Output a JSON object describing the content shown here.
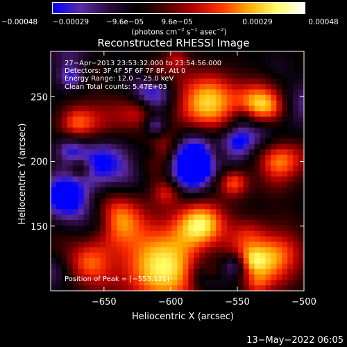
{
  "colorbar": {
    "ticks": [
      "−0.00048",
      "−0.00029",
      "−9.6e−05",
      "9.6e−05",
      "0.00029",
      "0.00048"
    ],
    "units_prefix": "(photons cm",
    "units_sup1": "−2",
    "units_mid1": " s",
    "units_sup2": "−1",
    "units_mid2": " asec",
    "units_sup3": "−2",
    "units_suffix": ")",
    "colors": [
      "#0000ff",
      "#5a2ca8",
      "#2a0a3a",
      "#000000",
      "#4a0000",
      "#b30000",
      "#ff3300",
      "#ffaa00",
      "#ffff66",
      "#ffffff"
    ]
  },
  "title": "Reconstructed RHESSI Image",
  "annotations": {
    "time_range": "27−Apr−2013 23:53:32.000 to 23:54:56.000",
    "detectors": "Detectors: 3F 4F 5F 6F 7F 8F, Att 0",
    "energy": "Energy Range: 12.0 − 25.0 keV",
    "clean": "Clean     Total counts: 5.47E+03",
    "peak": "Position of Peak = [−553,121]"
  },
  "chart_data": {
    "type": "heatmap",
    "title": "Reconstructed RHESSI Image",
    "xlabel": "Heliocentric X (arcsec)",
    "ylabel": "Heliocentric Y (arcsec)",
    "xlim": [
      -690,
      -500
    ],
    "ylim": [
      100,
      285
    ],
    "xticks": [
      -650,
      -600,
      -550,
      -500
    ],
    "xtick_labels": [
      "−650",
      "−600",
      "−550",
      "−500"
    ],
    "yticks": [
      150,
      200,
      250
    ],
    "ytick_labels": [
      "150",
      "200",
      "250"
    ],
    "colorbar_range": [
      -0.00048,
      0.00048
    ],
    "peak_position": [
      -553,
      121
    ]
  },
  "timestamp": "13−May−2022 06:05"
}
